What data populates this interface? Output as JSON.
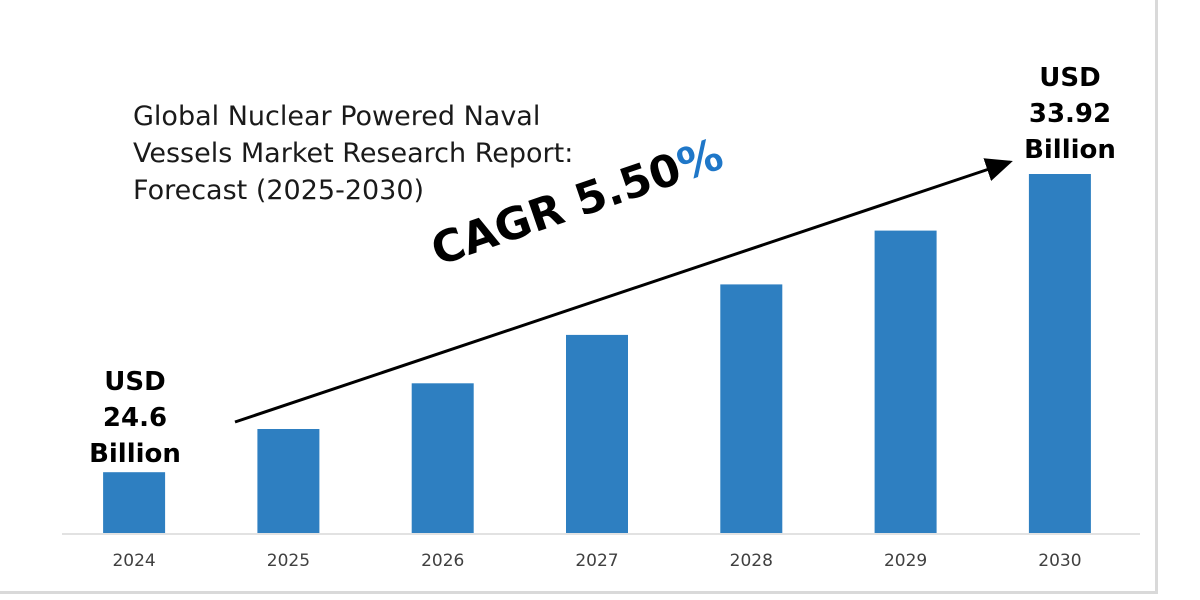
{
  "title_lines": [
    "Global Nuclear Powered Naval",
    "Vessels Market Research Report:",
    "Forecast (2025-2030)"
  ],
  "start_callout": {
    "line1": "USD",
    "line2": "24.6",
    "line3": "Billion"
  },
  "end_callout": {
    "line1": "USD",
    "line2": "33.92",
    "line3": "Billion"
  },
  "cagr": {
    "label": "CAGR 5.50",
    "symbol": "%"
  },
  "colors": {
    "bar": "#2e7fc1",
    "accent": "#1f77c8",
    "axis": "#d9d9d9",
    "tick_text": "#404040"
  },
  "chart_data": {
    "type": "bar",
    "title": "Global Nuclear Powered Naval Vessels Market Research Report: Forecast (2025-2030)",
    "xlabel": "",
    "ylabel": "",
    "categories": [
      "2024",
      "2025",
      "2026",
      "2027",
      "2028",
      "2029",
      "2030"
    ],
    "values": [
      24.6,
      25.95,
      27.38,
      28.89,
      30.47,
      32.15,
      33.92
    ],
    "unit": "USD Billion",
    "ylim": [
      22.7,
      34.8
    ],
    "grid": false,
    "legend": "none",
    "annotations": [
      "USD 24.6 Billion",
      "USD 33.92 Billion",
      "CAGR 5.50%"
    ]
  }
}
